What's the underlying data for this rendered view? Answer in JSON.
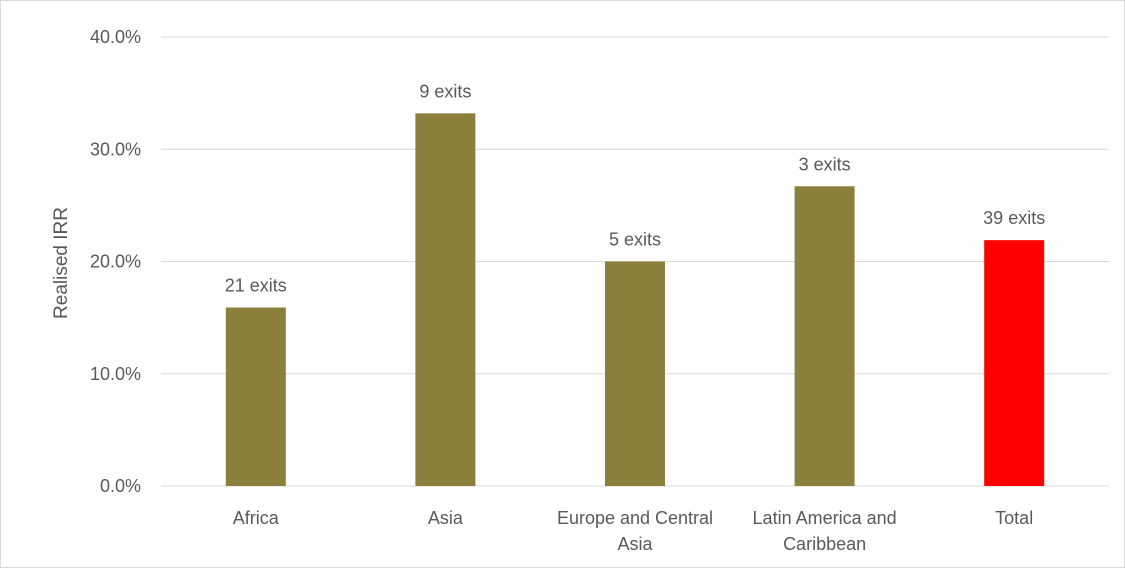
{
  "chart_data": {
    "type": "bar",
    "categories": [
      [
        "Africa"
      ],
      [
        "Asia"
      ],
      [
        "Europe and Central",
        "Asia"
      ],
      [
        "Latin America and",
        "Caribbean"
      ],
      [
        "Total"
      ]
    ],
    "values": [
      15.9,
      33.2,
      20.0,
      26.7,
      21.9
    ],
    "data_labels": [
      "21 exits",
      "9 exits",
      "5 exits",
      "3 exits",
      "39 exits"
    ],
    "colors": [
      "#8b7f3c",
      "#8b7f3c",
      "#8b7f3c",
      "#8b7f3c",
      "#ff0000"
    ],
    "ylabel": "Realised IRR",
    "ylim": [
      0,
      40
    ],
    "yticks": [
      0,
      10,
      20,
      30,
      40
    ],
    "ytick_labels": [
      "0.0%",
      "10.0%",
      "20.0%",
      "30.0%",
      "40.0%"
    ],
    "grid": true,
    "legend": false
  },
  "colors": {
    "gridline": "#d9d9d9",
    "text": "#595959"
  }
}
